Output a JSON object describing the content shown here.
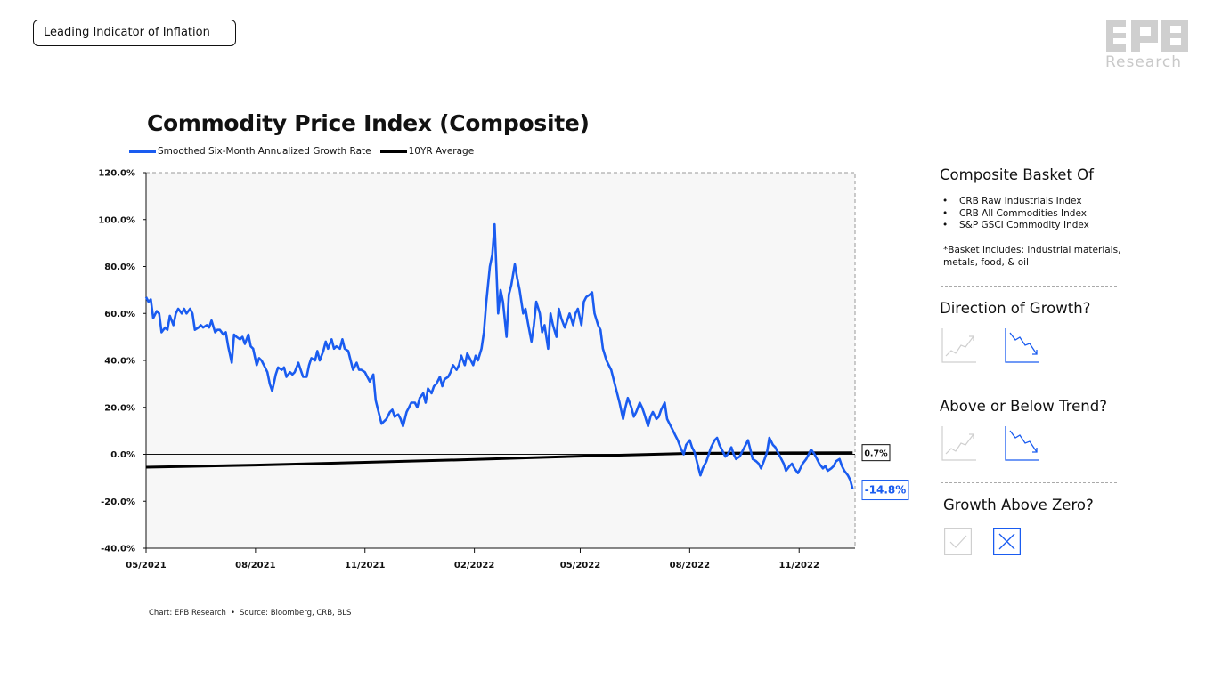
{
  "header": {
    "tag_label": "Leading Indicator of Inflation"
  },
  "logo": {
    "mark": "EPB",
    "text": "Research"
  },
  "chart_title": "Commodity Price Index (Composite)",
  "legend": [
    {
      "label": "Smoothed Six-Month Annualized Growth Rate",
      "color": "#1a5cf0"
    },
    {
      "label": "10YR Average",
      "color": "#000000"
    }
  ],
  "footer": {
    "chart_credit": "Chart: EPB Research",
    "separator": "•",
    "source": "Source: Bloomberg, CRB, BLS"
  },
  "sidebar": {
    "basket_title": "Composite Basket Of",
    "basket_bullet": "•",
    "basket_items": [
      "CRB Raw Industrials Index",
      "CRB All Commodities Index",
      "S&P GSCI Commodity Index"
    ],
    "basket_note": "*Basket includes: industrial materials, metals, food, & oil",
    "direction_title": "Direction of Growth?",
    "direction_selected": "down",
    "trend_title": "Above or Below Trend?",
    "trend_selected": "below",
    "zero_title": "Growth Above Zero?",
    "zero_selected": "no"
  },
  "chart_data": {
    "type": "line",
    "title": "Commodity Price Index (Composite)",
    "ylim": [
      -40,
      120
    ],
    "yticks": [
      -40,
      -20,
      0,
      20,
      40,
      60,
      80,
      100,
      120
    ],
    "ytick_labels": [
      "-40.0%",
      "-20.0%",
      "0.0%",
      "20.0%",
      "40.0%",
      "60.0%",
      "80.0%",
      "100.0%",
      "120.0%"
    ],
    "xlim": [
      "2021-05-01",
      "2022-12-18"
    ],
    "xticks": [
      "2021-05-01",
      "2021-08-01",
      "2021-11-01",
      "2022-02-01",
      "2022-05-01",
      "2022-08-01",
      "2022-11-01"
    ],
    "xtick_labels": [
      "05/2021",
      "08/2021",
      "11/2021",
      "02/2022",
      "05/2022",
      "08/2022",
      "11/2022"
    ],
    "grid": false,
    "legend_position": "top-left",
    "series": [
      {
        "name": "Smoothed Six-Month Annualized Growth Rate",
        "color": "#1a5cf0",
        "last_label": "-14.8%",
        "points": [
          [
            "2021-05-01",
            67
          ],
          [
            "2021-05-03",
            65
          ],
          [
            "2021-05-05",
            66
          ],
          [
            "2021-05-07",
            58
          ],
          [
            "2021-05-10",
            61
          ],
          [
            "2021-05-12",
            60
          ],
          [
            "2021-05-14",
            52
          ],
          [
            "2021-05-17",
            54
          ],
          [
            "2021-05-19",
            53
          ],
          [
            "2021-05-21",
            59
          ],
          [
            "2021-05-24",
            55
          ],
          [
            "2021-05-26",
            60
          ],
          [
            "2021-05-28",
            62
          ],
          [
            "2021-05-31",
            60
          ],
          [
            "2021-06-02",
            62
          ],
          [
            "2021-06-04",
            60
          ],
          [
            "2021-06-07",
            62
          ],
          [
            "2021-06-09",
            60
          ],
          [
            "2021-06-11",
            53
          ],
          [
            "2021-06-14",
            54
          ],
          [
            "2021-06-16",
            55
          ],
          [
            "2021-06-18",
            54
          ],
          [
            "2021-06-21",
            55
          ],
          [
            "2021-06-23",
            54
          ],
          [
            "2021-06-25",
            57
          ],
          [
            "2021-06-28",
            52
          ],
          [
            "2021-06-30",
            53
          ],
          [
            "2021-07-02",
            53
          ],
          [
            "2021-07-05",
            51
          ],
          [
            "2021-07-07",
            52
          ],
          [
            "2021-07-09",
            46
          ],
          [
            "2021-07-12",
            39
          ],
          [
            "2021-07-14",
            51
          ],
          [
            "2021-07-16",
            50
          ],
          [
            "2021-07-19",
            49
          ],
          [
            "2021-07-21",
            50
          ],
          [
            "2021-07-23",
            47
          ],
          [
            "2021-07-26",
            51
          ],
          [
            "2021-07-28",
            46
          ],
          [
            "2021-07-30",
            45
          ],
          [
            "2021-08-02",
            38
          ],
          [
            "2021-08-04",
            41
          ],
          [
            "2021-08-06",
            40
          ],
          [
            "2021-08-09",
            37
          ],
          [
            "2021-08-11",
            35
          ],
          [
            "2021-08-13",
            30
          ],
          [
            "2021-08-15",
            27
          ],
          [
            "2021-08-18",
            34
          ],
          [
            "2021-08-20",
            37
          ],
          [
            "2021-08-23",
            36
          ],
          [
            "2021-08-25",
            37
          ],
          [
            "2021-08-27",
            33
          ],
          [
            "2021-08-30",
            35
          ],
          [
            "2021-09-01",
            34
          ],
          [
            "2021-09-03",
            35
          ],
          [
            "2021-09-06",
            39
          ],
          [
            "2021-09-08",
            36
          ],
          [
            "2021-09-10",
            33
          ],
          [
            "2021-09-13",
            33
          ],
          [
            "2021-09-15",
            38
          ],
          [
            "2021-09-17",
            41
          ],
          [
            "2021-09-20",
            40
          ],
          [
            "2021-09-22",
            44
          ],
          [
            "2021-09-24",
            40
          ],
          [
            "2021-09-27",
            44
          ],
          [
            "2021-09-29",
            48
          ],
          [
            "2021-10-01",
            45
          ],
          [
            "2021-10-04",
            49
          ],
          [
            "2021-10-06",
            45
          ],
          [
            "2021-10-08",
            46
          ],
          [
            "2021-10-11",
            45
          ],
          [
            "2021-10-13",
            49
          ],
          [
            "2021-10-15",
            45
          ],
          [
            "2021-10-18",
            44
          ],
          [
            "2021-10-20",
            40
          ],
          [
            "2021-10-22",
            36
          ],
          [
            "2021-10-25",
            39
          ],
          [
            "2021-10-27",
            36
          ],
          [
            "2021-10-29",
            36
          ],
          [
            "2021-11-01",
            35
          ],
          [
            "2021-11-03",
            33
          ],
          [
            "2021-11-05",
            31
          ],
          [
            "2021-11-08",
            34
          ],
          [
            "2021-11-10",
            23
          ],
          [
            "2021-11-12",
            19
          ],
          [
            "2021-11-15",
            13
          ],
          [
            "2021-11-17",
            14
          ],
          [
            "2021-11-19",
            15
          ],
          [
            "2021-11-22",
            18
          ],
          [
            "2021-11-24",
            19
          ],
          [
            "2021-11-26",
            16
          ],
          [
            "2021-11-29",
            17
          ],
          [
            "2021-12-01",
            15
          ],
          [
            "2021-12-03",
            12
          ],
          [
            "2021-12-06",
            18
          ],
          [
            "2021-12-08",
            20
          ],
          [
            "2021-12-10",
            22
          ],
          [
            "2021-12-13",
            22
          ],
          [
            "2021-12-15",
            20
          ],
          [
            "2021-12-17",
            24
          ],
          [
            "2021-12-20",
            26
          ],
          [
            "2021-12-22",
            22
          ],
          [
            "2021-12-24",
            28
          ],
          [
            "2021-12-27",
            26
          ],
          [
            "2021-12-29",
            29
          ],
          [
            "2021-12-31",
            30
          ],
          [
            "2022-01-03",
            33
          ],
          [
            "2022-01-05",
            29
          ],
          [
            "2022-01-07",
            32
          ],
          [
            "2022-01-10",
            33
          ],
          [
            "2022-01-12",
            35
          ],
          [
            "2022-01-14",
            38
          ],
          [
            "2022-01-17",
            36
          ],
          [
            "2022-01-19",
            38
          ],
          [
            "2022-01-21",
            42
          ],
          [
            "2022-01-24",
            38
          ],
          [
            "2022-01-26",
            43
          ],
          [
            "2022-01-28",
            41
          ],
          [
            "2022-01-31",
            38
          ],
          [
            "2022-02-02",
            42
          ],
          [
            "2022-02-04",
            40
          ],
          [
            "2022-02-07",
            45
          ],
          [
            "2022-02-09",
            52
          ],
          [
            "2022-02-11",
            65
          ],
          [
            "2022-02-14",
            80
          ],
          [
            "2022-02-16",
            85
          ],
          [
            "2022-02-18",
            98
          ],
          [
            "2022-02-21",
            60
          ],
          [
            "2022-02-23",
            70
          ],
          [
            "2022-02-25",
            65
          ],
          [
            "2022-02-28",
            50
          ],
          [
            "2022-03-02",
            68
          ],
          [
            "2022-03-04",
            72
          ],
          [
            "2022-03-07",
            81
          ],
          [
            "2022-03-09",
            75
          ],
          [
            "2022-03-11",
            70
          ],
          [
            "2022-03-14",
            60
          ],
          [
            "2022-03-16",
            62
          ],
          [
            "2022-03-18",
            56
          ],
          [
            "2022-03-21",
            48
          ],
          [
            "2022-03-23",
            55
          ],
          [
            "2022-03-25",
            65
          ],
          [
            "2022-03-28",
            60
          ],
          [
            "2022-03-30",
            52
          ],
          [
            "2022-04-01",
            55
          ],
          [
            "2022-04-04",
            45
          ],
          [
            "2022-04-06",
            60
          ],
          [
            "2022-04-08",
            55
          ],
          [
            "2022-04-11",
            50
          ],
          [
            "2022-04-13",
            62
          ],
          [
            "2022-04-15",
            58
          ],
          [
            "2022-04-18",
            54
          ],
          [
            "2022-04-20",
            57
          ],
          [
            "2022-04-22",
            60
          ],
          [
            "2022-04-25",
            55
          ],
          [
            "2022-04-27",
            60
          ],
          [
            "2022-04-29",
            62
          ],
          [
            "2022-05-02",
            55
          ],
          [
            "2022-05-04",
            65
          ],
          [
            "2022-05-06",
            67
          ],
          [
            "2022-05-09",
            68
          ],
          [
            "2022-05-11",
            69
          ],
          [
            "2022-05-13",
            60
          ],
          [
            "2022-05-16",
            55
          ],
          [
            "2022-05-18",
            53
          ],
          [
            "2022-05-20",
            45
          ],
          [
            "2022-05-23",
            40
          ],
          [
            "2022-05-25",
            38
          ],
          [
            "2022-05-27",
            36
          ],
          [
            "2022-05-30",
            30
          ],
          [
            "2022-06-01",
            26
          ],
          [
            "2022-06-03",
            22
          ],
          [
            "2022-06-06",
            15
          ],
          [
            "2022-06-08",
            20
          ],
          [
            "2022-06-10",
            24
          ],
          [
            "2022-06-13",
            20
          ],
          [
            "2022-06-15",
            16
          ],
          [
            "2022-06-17",
            18
          ],
          [
            "2022-06-20",
            22
          ],
          [
            "2022-06-22",
            20
          ],
          [
            "2022-06-24",
            17
          ],
          [
            "2022-06-27",
            12
          ],
          [
            "2022-06-29",
            16
          ],
          [
            "2022-07-01",
            18
          ],
          [
            "2022-07-04",
            15
          ],
          [
            "2022-07-06",
            16
          ],
          [
            "2022-07-08",
            19
          ],
          [
            "2022-07-11",
            22
          ],
          [
            "2022-07-13",
            15
          ],
          [
            "2022-07-15",
            13
          ],
          [
            "2022-07-18",
            10
          ],
          [
            "2022-07-20",
            8
          ],
          [
            "2022-07-22",
            6
          ],
          [
            "2022-07-25",
            2
          ],
          [
            "2022-07-27",
            0
          ],
          [
            "2022-07-29",
            4
          ],
          [
            "2022-08-01",
            6
          ],
          [
            "2022-08-03",
            3
          ],
          [
            "2022-08-05",
            1
          ],
          [
            "2022-08-08",
            -5
          ],
          [
            "2022-08-10",
            -9
          ],
          [
            "2022-08-12",
            -6
          ],
          [
            "2022-08-15",
            -3
          ],
          [
            "2022-08-17",
            0
          ],
          [
            "2022-08-19",
            3
          ],
          [
            "2022-08-22",
            6
          ],
          [
            "2022-08-24",
            7
          ],
          [
            "2022-08-26",
            4
          ],
          [
            "2022-08-29",
            1
          ],
          [
            "2022-08-31",
            -1
          ],
          [
            "2022-09-02",
            0
          ],
          [
            "2022-09-05",
            3
          ],
          [
            "2022-09-07",
            0
          ],
          [
            "2022-09-09",
            -2
          ],
          [
            "2022-09-12",
            -1
          ],
          [
            "2022-09-14",
            1
          ],
          [
            "2022-09-16",
            3
          ],
          [
            "2022-09-19",
            6
          ],
          [
            "2022-09-21",
            2
          ],
          [
            "2022-09-23",
            -2
          ],
          [
            "2022-09-26",
            -3
          ],
          [
            "2022-09-28",
            -4
          ],
          [
            "2022-09-30",
            -6
          ],
          [
            "2022-10-03",
            -2
          ],
          [
            "2022-10-05",
            1
          ],
          [
            "2022-10-07",
            7
          ],
          [
            "2022-10-10",
            4
          ],
          [
            "2022-10-12",
            3
          ],
          [
            "2022-10-14",
            1
          ],
          [
            "2022-10-17",
            -2
          ],
          [
            "2022-10-19",
            -4
          ],
          [
            "2022-10-21",
            -7
          ],
          [
            "2022-10-24",
            -5
          ],
          [
            "2022-10-26",
            -4
          ],
          [
            "2022-10-28",
            -6
          ],
          [
            "2022-10-31",
            -8
          ],
          [
            "2022-11-02",
            -6
          ],
          [
            "2022-11-04",
            -4
          ],
          [
            "2022-11-07",
            -2
          ],
          [
            "2022-11-09",
            0
          ],
          [
            "2022-11-11",
            2
          ],
          [
            "2022-11-14",
            0
          ],
          [
            "2022-11-16",
            -2
          ],
          [
            "2022-11-18",
            -4
          ],
          [
            "2022-11-21",
            -6
          ],
          [
            "2022-11-23",
            -5
          ],
          [
            "2022-11-25",
            -7
          ],
          [
            "2022-11-28",
            -6
          ],
          [
            "2022-11-30",
            -5
          ],
          [
            "2022-12-02",
            -3
          ],
          [
            "2022-12-05",
            -2
          ],
          [
            "2022-12-07",
            -5
          ],
          [
            "2022-12-09",
            -7
          ],
          [
            "2022-12-12",
            -9
          ],
          [
            "2022-12-14",
            -11
          ],
          [
            "2022-12-16",
            -14.8
          ]
        ]
      },
      {
        "name": "10YR Average",
        "color": "#000000",
        "last_label": "0.7%",
        "points": [
          [
            "2021-05-01",
            -5.5
          ],
          [
            "2021-08-01",
            -4.6
          ],
          [
            "2021-11-01",
            -3.4
          ],
          [
            "2022-02-01",
            -2.2
          ],
          [
            "2022-05-01",
            -0.8
          ],
          [
            "2022-08-01",
            0.4
          ],
          [
            "2022-11-01",
            0.6
          ],
          [
            "2022-12-16",
            0.7
          ]
        ]
      }
    ]
  }
}
